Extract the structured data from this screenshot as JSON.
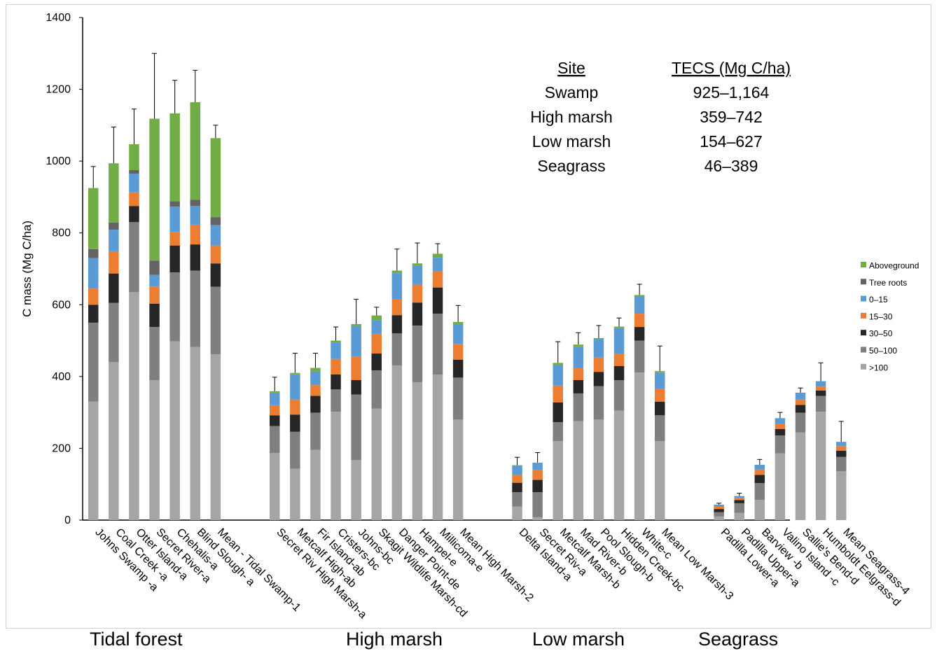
{
  "chart_data": {
    "type": "bar",
    "stacked": true,
    "ylabel": "C mass (Mg C/ha)",
    "ylim": [
      0,
      1400
    ],
    "yticks": [
      0,
      200,
      400,
      600,
      800,
      1000,
      1200,
      1400
    ],
    "legend_position": "right",
    "stack_order": [
      ">100",
      "50–100",
      "30–50",
      "15–30",
      "0–15",
      "Tree roots",
      "Aboveground"
    ],
    "legend_order": [
      "Aboveground",
      "Tree roots",
      "0–15",
      "15–30",
      "30–50",
      "50–100",
      ">100"
    ],
    "colors": {
      "Aboveground": "#70ad47",
      "Tree roots": "#636363",
      "0–15": "#5b9bd5",
      "15–30": "#ed7d31",
      "30–50": "#262626",
      "50–100": "#7f7f7f",
      ">100": "#a5a5a5"
    },
    "groups": [
      {
        "name": "Tidal forest",
        "categories": [
          {
            "label": "Johns Swamp -a",
            "segments": [
              330,
              220,
              50,
              45,
              85,
              25,
              170
            ],
            "error": 985
          },
          {
            "label": "Coal Creek -a",
            "segments": [
              440,
              165,
              82,
              62,
              60,
              20,
              165
            ],
            "error": 1095
          },
          {
            "label": "Otter Island-a",
            "segments": [
              635,
              195,
              45,
              38,
              52,
              10,
              72
            ],
            "error": 1145
          },
          {
            "label": "Secret River-a",
            "segments": [
              390,
              148,
              65,
              48,
              32,
              40,
              395
            ],
            "error": 1300
          },
          {
            "label": "Chehalis-a",
            "segments": [
              498,
              192,
              75,
              38,
              70,
              15,
              245
            ],
            "error": 1225
          },
          {
            "label": "Blind Slough- a",
            "segments": [
              482,
              213,
              73,
              55,
              52,
              17,
              272
            ],
            "error": 1253
          },
          {
            "label": "Mean - Tidal Swamp-1",
            "segments": [
              462,
              188,
              65,
              50,
              57,
              22,
              220
            ],
            "error": 1100
          }
        ]
      },
      {
        "name": "High marsh",
        "categories": [
          {
            "label": "Secret Riv High Marsh-a",
            "segments": [
              187,
              75,
              30,
              28,
              35,
              0,
              4
            ],
            "error": 398
          },
          {
            "label": "Metcalf High-ab",
            "segments": [
              143,
              103,
              48,
              42,
              70,
              0,
              4
            ],
            "error": 465
          },
          {
            "label": "Fir Island-ab",
            "segments": [
              196,
              103,
              47,
              30,
              38,
              0,
              10
            ],
            "error": 465
          },
          {
            "label": "Cristers-bc",
            "segments": [
              302,
              62,
              42,
              43,
              45,
              0,
              6
            ],
            "error": 538
          },
          {
            "label": "Johns-bc",
            "segments": [
              167,
              183,
              40,
              65,
              85,
              0,
              6
            ],
            "error": 615
          },
          {
            "label": "Skagit Wildlife Marsh-cd",
            "segments": [
              311,
              106,
              47,
              55,
              38,
              0,
              13
            ],
            "error": 593
          },
          {
            "label": "Danger Point-de",
            "segments": [
              431,
              89,
              51,
              44,
              73,
              0,
              7
            ],
            "error": 755
          },
          {
            "label": "Hampel-e",
            "segments": [
              384,
              158,
              64,
              50,
              53,
              0,
              6
            ],
            "error": 772
          },
          {
            "label": "Millicoma-e",
            "segments": [
              405,
              170,
              73,
              45,
              38,
              0,
              11
            ],
            "error": 770
          },
          {
            "label": "Mean High Marsh-2",
            "segments": [
              280,
              117,
              50,
              44,
              55,
              0,
              6
            ],
            "error": 598
          }
        ]
      },
      {
        "name": "Low marsh",
        "categories": [
          {
            "label": "Delta Island-a",
            "segments": [
              38,
              40,
              26,
              22,
              25,
              0,
              2
            ],
            "error": 175
          },
          {
            "label": "Secret Riv-a",
            "segments": [
              8,
              70,
              34,
              27,
              19,
              0,
              2
            ],
            "error": 188
          },
          {
            "label": "Metcalf Marsh-b",
            "segments": [
              220,
              53,
              55,
              47,
              57,
              0,
              6
            ],
            "error": 497
          },
          {
            "label": "Mad River-b",
            "segments": [
              276,
              77,
              37,
              33,
              60,
              0,
              6
            ],
            "error": 522
          },
          {
            "label": "Pool Slough-b",
            "segments": [
              280,
              93,
              40,
              40,
              51,
              0,
              3
            ],
            "error": 542
          },
          {
            "label": "Hidden Creek-bc",
            "segments": [
              305,
              85,
              39,
              35,
              71,
              0,
              4
            ],
            "error": 563
          },
          {
            "label": "White-c",
            "segments": [
              411,
              89,
              38,
              37,
              48,
              0,
              4
            ],
            "error": 657
          },
          {
            "label": "Mean  Low Marsh-3",
            "segments": [
              220,
              72,
              38,
              35,
              46,
              0,
              4
            ],
            "error": 485
          }
        ]
      },
      {
        "name": "Seagrass",
        "categories": [
          {
            "label": "Padilla Lower-a",
            "segments": [
              10,
              12,
              9,
              6,
              6,
              0,
              0
            ],
            "error": 47
          },
          {
            "label": "Padilla Upper-a",
            "segments": [
              20,
              27,
              9,
              5,
              6,
              0,
              0
            ],
            "error": 75
          },
          {
            "label": "Barview -b",
            "segments": [
              56,
              47,
              23,
              15,
              13,
              0,
              0
            ],
            "error": 169
          },
          {
            "label": "Valino Island -c",
            "segments": [
              186,
              50,
              18,
              15,
              15,
              0,
              0
            ],
            "error": 300
          },
          {
            "label": "Sallie's Bend-d",
            "segments": [
              244,
              55,
              22,
              15,
              19,
              0,
              0
            ],
            "error": 368
          },
          {
            "label": "Humboldt Eelgrass-d",
            "segments": [
              302,
              44,
              15,
              11,
              15,
              0,
              0
            ],
            "error": 438
          },
          {
            "label": "Mean Seagrass-4",
            "segments": [
              136,
              40,
              17,
              13,
              12,
              0,
              0
            ],
            "error": 275
          }
        ]
      }
    ],
    "annotation_table": {
      "headers": [
        "Site",
        "TECS (Mg C/ha)"
      ],
      "rows": [
        [
          "Swamp",
          "925–1,164"
        ],
        [
          "High marsh",
          "359–742"
        ],
        [
          "Low marsh",
          "154–627"
        ],
        [
          "Seagrass",
          "46–389"
        ]
      ]
    }
  },
  "group_labels": {
    "tidal_forest": "Tidal forest",
    "high_marsh": "High marsh",
    "low_marsh": "Low marsh",
    "seagrass": "Seagrass"
  }
}
